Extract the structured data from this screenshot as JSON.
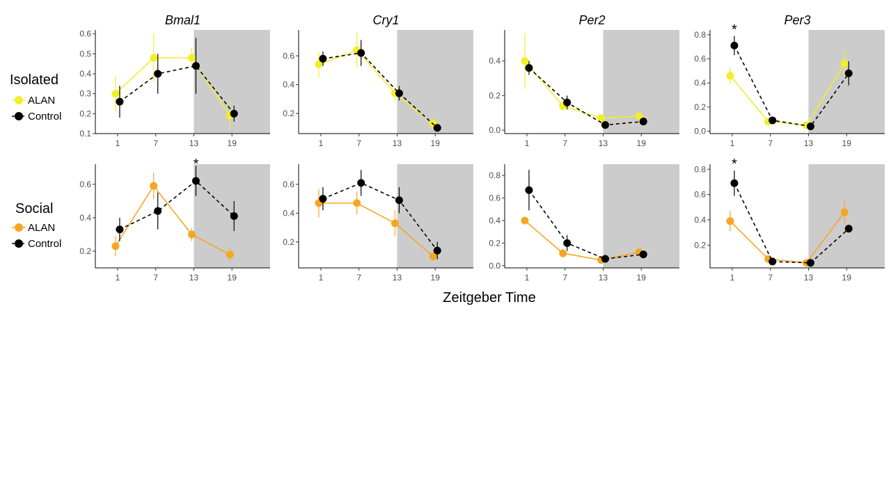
{
  "figure": {
    "xlabel": "Zeitgeber Time",
    "rows": [
      {
        "label": "Isolated",
        "legend": [
          "ALAN",
          "Control"
        ],
        "alan_color": "#f2ee2a"
      },
      {
        "label": "Social",
        "legend": [
          "ALAN",
          "Control"
        ],
        "alan_color": "#f5a623"
      }
    ],
    "control_color": "#000000",
    "dark_phase_color": "#cccccc"
  },
  "chart_data": [
    {
      "type": "line",
      "title": "Bmal1",
      "row": "Isolated",
      "x": [
        1,
        7,
        13,
        19
      ],
      "xticks": [
        "1",
        "7",
        "13",
        "19"
      ],
      "dark_phase": [
        13,
        25
      ],
      "ylim": [
        0.1,
        0.62
      ],
      "yticks": [
        0.1,
        0.2,
        0.3,
        0.4,
        0.5,
        0.6
      ],
      "series": [
        {
          "name": "ALAN",
          "values": [
            0.3,
            0.48,
            0.48,
            0.19
          ],
          "err": [
            0.09,
            0.12,
            0.05,
            0.07
          ]
        },
        {
          "name": "Control",
          "values": [
            0.26,
            0.4,
            0.44,
            0.2
          ],
          "err": [
            0.08,
            0.1,
            0.14,
            0.04
          ]
        }
      ],
      "annotations": []
    },
    {
      "type": "line",
      "title": "Cry1",
      "row": "Isolated",
      "x": [
        1,
        7,
        13,
        19
      ],
      "xticks": [
        "1",
        "7",
        "13",
        "19"
      ],
      "dark_phase": [
        13,
        25
      ],
      "ylim": [
        0.06,
        0.78
      ],
      "yticks": [
        0.2,
        0.4,
        0.6
      ],
      "series": [
        {
          "name": "ALAN",
          "values": [
            0.54,
            0.64,
            0.34,
            0.13
          ],
          "err": [
            0.09,
            0.12,
            0.06,
            0.03
          ]
        },
        {
          "name": "Control",
          "values": [
            0.58,
            0.62,
            0.34,
            0.1
          ],
          "err": [
            0.05,
            0.09,
            0.05,
            0.02
          ]
        }
      ],
      "annotations": []
    },
    {
      "type": "line",
      "title": "Per2",
      "row": "Isolated",
      "x": [
        1,
        7,
        13,
        19
      ],
      "xticks": [
        "1",
        "7",
        "13",
        "19"
      ],
      "dark_phase": [
        13,
        25
      ],
      "ylim": [
        -0.02,
        0.58
      ],
      "yticks": [
        0.0,
        0.2,
        0.4
      ],
      "series": [
        {
          "name": "ALAN",
          "values": [
            0.4,
            0.14,
            0.07,
            0.08
          ],
          "err": [
            0.16,
            0.03,
            0.02,
            0.01
          ]
        },
        {
          "name": "Control",
          "values": [
            0.36,
            0.16,
            0.03,
            0.05
          ],
          "err": [
            0.04,
            0.04,
            0.01,
            0.01
          ]
        }
      ],
      "annotations": []
    },
    {
      "type": "line",
      "title": "Per3",
      "row": "Isolated",
      "x": [
        1,
        7,
        13,
        19
      ],
      "xticks": [
        "1",
        "7",
        "13",
        "19"
      ],
      "dark_phase": [
        13,
        25
      ],
      "ylim": [
        -0.02,
        0.84
      ],
      "yticks": [
        0.0,
        0.2,
        0.4,
        0.6,
        0.8
      ],
      "series": [
        {
          "name": "ALAN",
          "values": [
            0.46,
            0.08,
            0.05,
            0.56
          ],
          "err": [
            0.07,
            0.02,
            0.02,
            0.12
          ]
        },
        {
          "name": "Control",
          "values": [
            0.71,
            0.09,
            0.04,
            0.48
          ],
          "err": [
            0.08,
            0.02,
            0.02,
            0.1
          ]
        }
      ],
      "annotations": [
        {
          "x": 1,
          "text": "*"
        }
      ]
    },
    {
      "type": "line",
      "title": "",
      "row": "Social",
      "x": [
        1,
        7,
        13,
        19
      ],
      "xticks": [
        "1",
        "7",
        "13",
        "19"
      ],
      "dark_phase": [
        13,
        25
      ],
      "ylim": [
        0.1,
        0.72
      ],
      "yticks": [
        0.2,
        0.4,
        0.6
      ],
      "series": [
        {
          "name": "ALAN",
          "values": [
            0.23,
            0.59,
            0.3,
            0.18
          ],
          "err": [
            0.06,
            0.08,
            0.04,
            0.04
          ]
        },
        {
          "name": "Control",
          "values": [
            0.33,
            0.44,
            0.62,
            0.41
          ],
          "err": [
            0.07,
            0.11,
            0.09,
            0.09
          ]
        }
      ],
      "annotations": [
        {
          "x": 13,
          "text": "*"
        }
      ]
    },
    {
      "type": "line",
      "title": "",
      "row": "Social",
      "x": [
        1,
        7,
        13,
        19
      ],
      "xticks": [
        "1",
        "7",
        "13",
        "19"
      ],
      "dark_phase": [
        13,
        25
      ],
      "ylim": [
        0.02,
        0.74
      ],
      "yticks": [
        0.2,
        0.4,
        0.6
      ],
      "series": [
        {
          "name": "ALAN",
          "values": [
            0.47,
            0.47,
            0.33,
            0.1
          ],
          "err": [
            0.1,
            0.08,
            0.09,
            0.03
          ]
        },
        {
          "name": "Control",
          "values": [
            0.5,
            0.61,
            0.49,
            0.14
          ],
          "err": [
            0.08,
            0.09,
            0.09,
            0.06
          ]
        }
      ],
      "annotations": []
    },
    {
      "type": "line",
      "title": "",
      "row": "Social",
      "x": [
        1,
        7,
        13,
        19
      ],
      "xticks": [
        "1",
        "7",
        "13",
        "19"
      ],
      "dark_phase": [
        13,
        25
      ],
      "ylim": [
        -0.02,
        0.9
      ],
      "yticks": [
        0.0,
        0.2,
        0.4,
        0.6,
        0.8
      ],
      "series": [
        {
          "name": "ALAN",
          "values": [
            0.4,
            0.11,
            0.05,
            0.12
          ],
          "err": [
            0.02,
            0.04,
            0.02,
            0.03
          ]
        },
        {
          "name": "Control",
          "values": [
            0.67,
            0.2,
            0.06,
            0.1
          ],
          "err": [
            0.18,
            0.07,
            0.02,
            0.03
          ]
        }
      ],
      "annotations": []
    },
    {
      "type": "line",
      "title": "",
      "row": "Social",
      "x": [
        1,
        7,
        13,
        19
      ],
      "xticks": [
        "1",
        "7",
        "13",
        "19"
      ],
      "dark_phase": [
        13,
        25
      ],
      "ylim": [
        0.02,
        0.84
      ],
      "yticks": [
        0.2,
        0.4,
        0.6,
        0.8
      ],
      "series": [
        {
          "name": "ALAN",
          "values": [
            0.39,
            0.09,
            0.06,
            0.46
          ],
          "err": [
            0.08,
            0.02,
            0.01,
            0.09
          ]
        },
        {
          "name": "Control",
          "values": [
            0.69,
            0.07,
            0.06,
            0.33
          ],
          "err": [
            0.1,
            0.02,
            0.01,
            0.03
          ]
        }
      ],
      "annotations": [
        {
          "x": 1,
          "text": "*"
        }
      ]
    }
  ]
}
